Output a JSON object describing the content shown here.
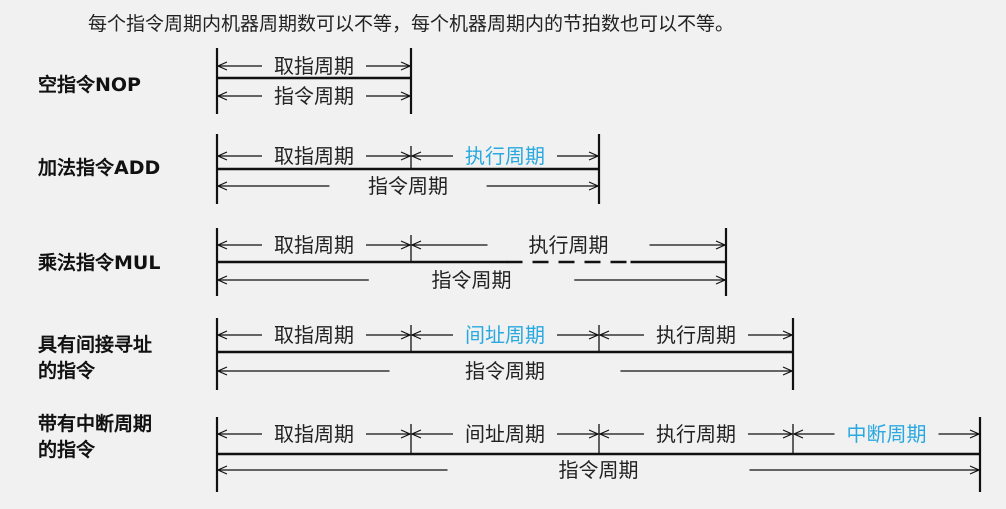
{
  "intro": "每个指令周期内机器周期数可以不等，每个机器周期内的节拍数也可以不等。",
  "colors": {
    "background": "#f1f1f1",
    "line": "#111111",
    "text": "#222222",
    "highlight": "#29a9e0"
  },
  "rows": [
    {
      "label": [
        "空指令NOP"
      ],
      "segments": [
        {
          "text": "取指周期",
          "highlight": false
        }
      ],
      "total": "指令周期"
    },
    {
      "label": [
        "加法指令ADD"
      ],
      "segments": [
        {
          "text": "取指周期",
          "highlight": false
        },
        {
          "text": "执行周期",
          "highlight": true
        }
      ],
      "total": "指令周期"
    },
    {
      "label": [
        "乘法指令MUL"
      ],
      "segments": [
        {
          "text": "取指周期",
          "highlight": false
        },
        {
          "text": "执行周期",
          "highlight": false,
          "dashed": true
        }
      ],
      "total": "指令周期"
    },
    {
      "label": [
        "具有间接寻址",
        "的指令"
      ],
      "segments": [
        {
          "text": "取指周期",
          "highlight": false
        },
        {
          "text": "间址周期",
          "highlight": true
        },
        {
          "text": "执行周期",
          "highlight": false
        }
      ],
      "total": "指令周期"
    },
    {
      "label": [
        "带有中断周期",
        "的指令"
      ],
      "segments": [
        {
          "text": "取指周期",
          "highlight": false
        },
        {
          "text": "间址周期",
          "highlight": false
        },
        {
          "text": "执行周期",
          "highlight": false
        },
        {
          "text": "中断周期",
          "highlight": true
        }
      ],
      "total": "指令周期"
    }
  ]
}
